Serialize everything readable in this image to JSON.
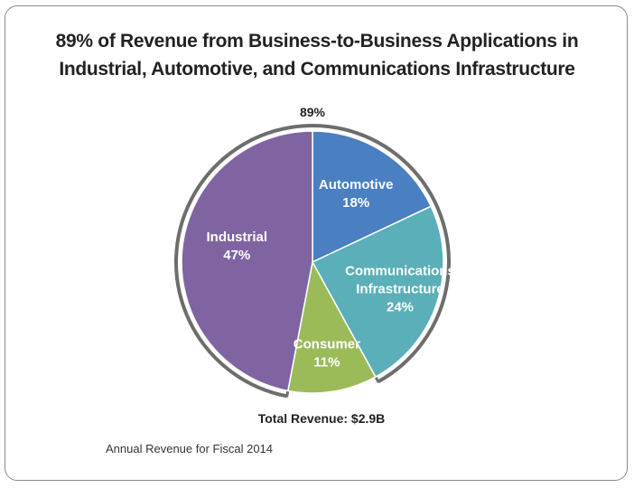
{
  "chart_data": {
    "type": "pie",
    "title": "89% of Revenue from Business-to-Business Applications in Industrial, Automotive, and Communications Infrastructure",
    "title_lines": [
      "89% of Revenue from Business-to-Business Applications in",
      "Industrial, Automotive, and Communications Infrastructure"
    ],
    "slices": [
      {
        "name": "Automotive",
        "label_lines": [
          "Automotive"
        ],
        "value": 18,
        "value_label": "18%",
        "color": "#4a7fc1"
      },
      {
        "name": "Communications Infrastructure",
        "label_lines": [
          "Communications",
          "Infrastructure"
        ],
        "value": 24,
        "value_label": "24%",
        "color": "#5aafb8"
      },
      {
        "name": "Consumer",
        "label_lines": [
          "Consumer"
        ],
        "value": 11,
        "value_label": "11%",
        "color": "#9bbb59"
      },
      {
        "name": "Industrial",
        "label_lines": [
          "Industrial"
        ],
        "value": 47,
        "value_label": "47%",
        "color": "#8064a2"
      }
    ],
    "bracket_label": "89%",
    "bracket_value": 89,
    "bracket_color": "#6d6d6d",
    "total_label": "Total Revenue: $2.9B",
    "footnote": "Annual Revenue for Fiscal 2014"
  }
}
